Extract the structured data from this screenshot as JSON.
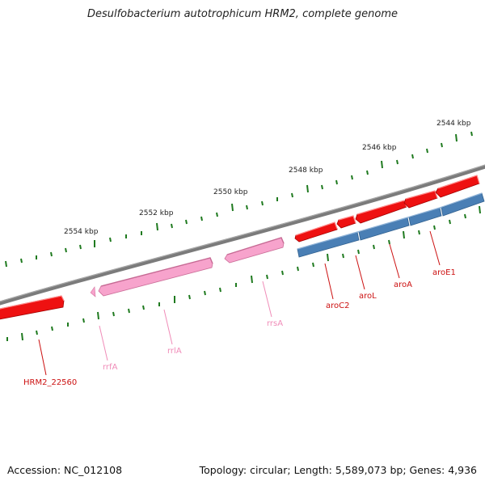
{
  "title": "Desulfobacterium autotrophicum HRM2, complete genome",
  "footer": {
    "accession": "Accession: NC_012108",
    "summary": "Topology: circular; Length: 5,589,073 bp; Genes: 4,936"
  },
  "colors": {
    "backbone": "#808080",
    "tick": "#1f7a1f",
    "gene_forward": "#ee1111",
    "gene_reverse": "#4a7fb5",
    "rna": "#f7a3cc",
    "label_gene": "#cc1111",
    "label_rna": "#f08cb8"
  },
  "scale_labels": [
    "2544 kbp",
    "2546 kbp",
    "2548 kbp",
    "2550 kbp",
    "2552 kbp",
    "2554 kbp"
  ],
  "features": [
    {
      "name": "HRM2_22560",
      "type": "gene",
      "strand": "forward"
    },
    {
      "name": "rrfA",
      "type": "rna",
      "strand": "forward"
    },
    {
      "name": "rrlA",
      "type": "rna",
      "strand": "forward"
    },
    {
      "name": "rrsA",
      "type": "rna",
      "strand": "forward"
    },
    {
      "name": "aroC2",
      "type": "gene",
      "strand": "forward"
    },
    {
      "name": "aroL",
      "type": "gene",
      "strand": "forward"
    },
    {
      "name": "aroA",
      "type": "gene",
      "strand": "forward"
    },
    {
      "name": "aroE1",
      "type": "gene",
      "strand": "forward"
    }
  ]
}
